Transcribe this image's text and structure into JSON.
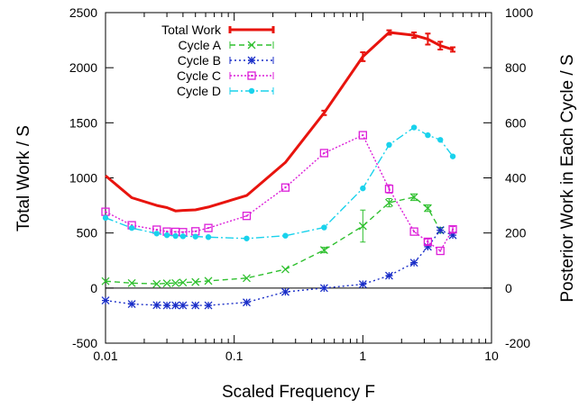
{
  "chart_data": {
    "type": "line",
    "x_scale": "log",
    "xlabel": "Scaled Frequency F",
    "ylabel": "Total Work / S",
    "y2label": "Posterior Work in Each Cycle / S",
    "xlim": [
      0.01,
      10
    ],
    "ylim": [
      -500,
      2500
    ],
    "y2lim": [
      -200,
      1000
    ],
    "x_ticks": [
      "0.01",
      "0.1",
      "1",
      "10"
    ],
    "y_ticks": [
      "-500",
      "0",
      "500",
      "1000",
      "1500",
      "2000",
      "2500"
    ],
    "y2_ticks": [
      "-200",
      "0",
      "200",
      "400",
      "600",
      "800",
      "1000"
    ],
    "grid": false,
    "legend_position": "top-left",
    "series": [
      {
        "name": "Total Work",
        "axis": "left",
        "color": "#e8140e",
        "dash": "",
        "marker": "none",
        "width": 3,
        "x": [
          0.01,
          0.016,
          0.025,
          0.03,
          0.035,
          0.04,
          0.05,
          0.063,
          0.125,
          0.25,
          0.5,
          1.0,
          1.6,
          2.5,
          3.2,
          4.0,
          5.0
        ],
        "y": [
          1020,
          820,
          750,
          730,
          700,
          705,
          710,
          735,
          840,
          1140,
          1590,
          2100,
          2320,
          2295,
          2260,
          2200,
          2165
        ],
        "err": [
          0,
          0,
          0,
          0,
          0,
          0,
          0,
          0,
          0,
          0,
          20,
          40,
          20,
          25,
          50,
          35,
          20
        ]
      },
      {
        "name": "Cycle A",
        "axis": "right",
        "color": "#2fc02f",
        "dash": "6,4",
        "marker": "x",
        "width": 1.4,
        "x": [
          0.01,
          0.016,
          0.025,
          0.03,
          0.035,
          0.04,
          0.05,
          0.063,
          0.125,
          0.25,
          0.5,
          1.0,
          1.6,
          2.5,
          3.2,
          4.0
        ],
        "y": [
          25,
          18,
          15,
          17,
          18,
          20,
          22,
          26,
          36,
          68,
          138,
          225,
          310,
          330,
          290,
          210
        ],
        "err": [
          0,
          0,
          0,
          0,
          0,
          0,
          0,
          0,
          0,
          0,
          10,
          58,
          15,
          12,
          12,
          10
        ]
      },
      {
        "name": "Cycle B",
        "axis": "right",
        "color": "#1a2ec8",
        "dash": "2,3",
        "marker": "star",
        "width": 1.4,
        "x": [
          0.01,
          0.016,
          0.025,
          0.03,
          0.035,
          0.04,
          0.05,
          0.063,
          0.125,
          0.25,
          0.5,
          1.0,
          1.6,
          2.5,
          3.2,
          4.0,
          5.0
        ],
        "y": [
          -45,
          -58,
          -62,
          -63,
          -63,
          -63,
          -63,
          -63,
          -52,
          -14,
          0,
          14,
          45,
          92,
          150,
          210,
          192
        ],
        "err": [
          0,
          0,
          0,
          0,
          0,
          0,
          0,
          0,
          0,
          0,
          0,
          0,
          0,
          0,
          0,
          0,
          0
        ]
      },
      {
        "name": "Cycle C",
        "axis": "right",
        "color": "#dc1ed8",
        "dash": "2,2",
        "marker": "square",
        "width": 1.4,
        "x": [
          0.01,
          0.016,
          0.025,
          0.03,
          0.035,
          0.04,
          0.05,
          0.063,
          0.125,
          0.25,
          0.5,
          1.0,
          1.6,
          2.5,
          3.2,
          4.0,
          5.0
        ],
        "y": [
          277,
          228,
          212,
          205,
          204,
          203,
          206,
          218,
          262,
          365,
          490,
          555,
          360,
          205,
          168,
          135,
          213
        ],
        "err": [
          0,
          0,
          0,
          0,
          0,
          0,
          0,
          0,
          0,
          0,
          0,
          0,
          15,
          0,
          10,
          0,
          10
        ]
      },
      {
        "name": "Cycle D",
        "axis": "right",
        "color": "#19d2ec",
        "dash": "9,3,2,3",
        "marker": "circle",
        "width": 1.4,
        "x": [
          0.01,
          0.016,
          0.025,
          0.03,
          0.035,
          0.04,
          0.05,
          0.063,
          0.125,
          0.25,
          0.5,
          1.0,
          1.6,
          2.5,
          3.2,
          4.0,
          5.0
        ],
        "y": [
          255,
          218,
          198,
          192,
          189,
          188,
          187,
          185,
          180,
          190,
          220,
          362,
          520,
          583,
          555,
          538,
          478
        ],
        "err": [
          0,
          0,
          0,
          0,
          0,
          0,
          0,
          0,
          0,
          0,
          0,
          0,
          0,
          0,
          0,
          0,
          0
        ]
      }
    ]
  }
}
